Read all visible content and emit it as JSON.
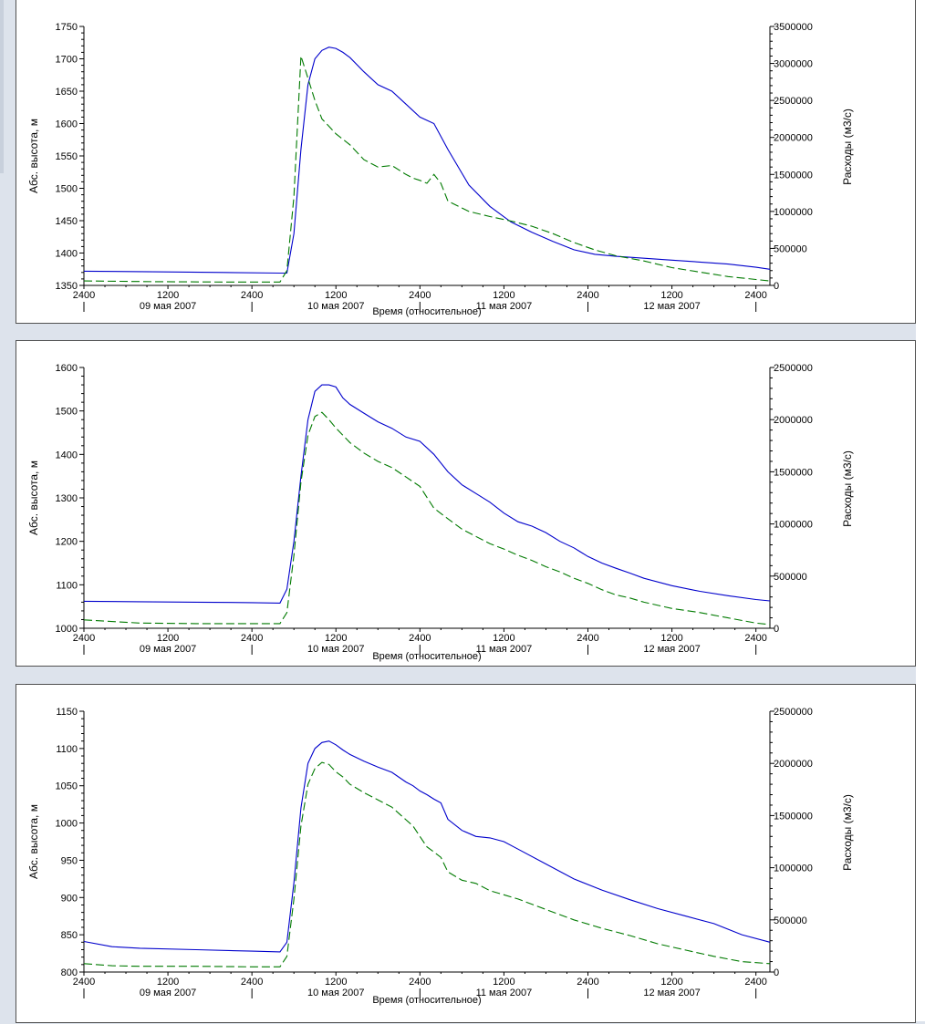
{
  "colors": {
    "elevation_line": "#0000cc",
    "discharge_line": "#007a00",
    "axis": "#000000",
    "panel_background": "#ffffff",
    "window_background": "#dde3ec"
  },
  "chart_data": [
    {
      "type": "line",
      "title": "",
      "xlabel": "Время (относительное)",
      "ylabel": "Абс. высота, м",
      "y2label": "Расходы (м3/с)",
      "x_tick_labels": [
        "2400",
        "1200",
        "2400",
        "1200",
        "2400",
        "1200",
        "2400",
        "1200",
        "2400"
      ],
      "date_labels": [
        "09 мая 2007",
        "10 мая 2007",
        "11 мая 2007",
        "12 мая 2007"
      ],
      "xlim": [
        0,
        98
      ],
      "ylim": [
        1350,
        1750
      ],
      "y_ticks": [
        1350,
        1400,
        1450,
        1500,
        1550,
        1600,
        1650,
        1700,
        1750
      ],
      "y2lim": [
        0,
        3500000
      ],
      "y2_ticks": [
        0,
        500000,
        1000000,
        1500000,
        2000000,
        2500000,
        3000000,
        3500000
      ],
      "grid": false,
      "series": [
        {
          "axis": "left",
          "line_style": "solid",
          "color": "#0000cc",
          "x": [
            0,
            10,
            20,
            28,
            29,
            30,
            31,
            32,
            33,
            34,
            35,
            36,
            37,
            38,
            40,
            42,
            44,
            46,
            48,
            50,
            52,
            55,
            58,
            61,
            64,
            67,
            70,
            73,
            76,
            80,
            84,
            88,
            92,
            96,
            98
          ],
          "y": [
            1372,
            1371,
            1370,
            1369,
            1369,
            1430,
            1560,
            1660,
            1700,
            1713,
            1718,
            1716,
            1710,
            1702,
            1680,
            1660,
            1650,
            1630,
            1610,
            1600,
            1560,
            1505,
            1472,
            1448,
            1432,
            1418,
            1405,
            1398,
            1395,
            1392,
            1389,
            1386,
            1383,
            1378,
            1375
          ]
        },
        {
          "axis": "right",
          "line_style": "dashed",
          "color": "#007a00",
          "x": [
            0,
            10,
            20,
            28,
            29,
            30,
            31,
            32,
            33,
            34,
            35,
            36,
            38,
            40,
            42,
            44,
            46,
            47,
            48,
            49,
            50,
            51,
            52,
            55,
            58,
            61,
            64,
            67,
            70,
            73,
            76,
            80,
            84,
            88,
            92,
            96,
            98
          ],
          "y": [
            60000,
            50000,
            45000,
            45000,
            200000,
            1200000,
            3100000,
            2800000,
            2500000,
            2250000,
            2150000,
            2050000,
            1900000,
            1700000,
            1600000,
            1620000,
            1500000,
            1450000,
            1420000,
            1380000,
            1500000,
            1380000,
            1140000,
            1000000,
            930000,
            870000,
            800000,
            700000,
            580000,
            480000,
            400000,
            330000,
            240000,
            180000,
            120000,
            80000,
            60000
          ]
        }
      ]
    },
    {
      "type": "line",
      "title": "",
      "xlabel": "Время (относительное)",
      "ylabel": "Абс. высота, м",
      "y2label": "Расходы (м3/с)",
      "x_tick_labels": [
        "2400",
        "1200",
        "2400",
        "1200",
        "2400",
        "1200",
        "2400",
        "1200",
        "2400"
      ],
      "date_labels": [
        "09 мая 2007",
        "10 мая 2007",
        "11 мая 2007",
        "12 мая 2007"
      ],
      "xlim": [
        0,
        98
      ],
      "ylim": [
        1000,
        1600
      ],
      "y_ticks": [
        1000,
        1100,
        1200,
        1300,
        1400,
        1500,
        1600
      ],
      "y2lim": [
        0,
        2500000
      ],
      "y2_ticks": [
        0,
        500000,
        1000000,
        1500000,
        2000000,
        2500000
      ],
      "grid": false,
      "series": [
        {
          "axis": "left",
          "line_style": "solid",
          "color": "#0000cc",
          "x": [
            0,
            8,
            16,
            24,
            28,
            29,
            30,
            31,
            32,
            33,
            34,
            35,
            36,
            37,
            38,
            40,
            42,
            44,
            46,
            48,
            50,
            52,
            54,
            56,
            58,
            60,
            62,
            64,
            66,
            68,
            70,
            72,
            74,
            76,
            78,
            80,
            84,
            88,
            92,
            96,
            98
          ],
          "y": [
            1062,
            1061,
            1060,
            1059,
            1058,
            1090,
            1200,
            1350,
            1480,
            1545,
            1560,
            1560,
            1555,
            1530,
            1515,
            1495,
            1475,
            1460,
            1440,
            1430,
            1400,
            1360,
            1330,
            1310,
            1290,
            1265,
            1245,
            1235,
            1220,
            1200,
            1185,
            1165,
            1150,
            1138,
            1127,
            1115,
            1098,
            1085,
            1075,
            1066,
            1063
          ]
        },
        {
          "axis": "right",
          "line_style": "dashed",
          "color": "#007a00",
          "x": [
            0,
            8,
            16,
            24,
            28,
            29,
            30,
            31,
            32,
            33,
            34,
            35,
            36,
            37,
            38,
            40,
            42,
            44,
            46,
            48,
            50,
            52,
            54,
            56,
            58,
            60,
            62,
            64,
            66,
            68,
            70,
            72,
            74,
            76,
            78,
            80,
            84,
            88,
            92,
            96,
            98
          ],
          "y": [
            80000,
            50000,
            45000,
            45000,
            45000,
            150000,
            700000,
            1400000,
            1850000,
            2030000,
            2070000,
            2000000,
            1920000,
            1850000,
            1780000,
            1680000,
            1600000,
            1540000,
            1450000,
            1360000,
            1150000,
            1050000,
            950000,
            880000,
            810000,
            760000,
            700000,
            650000,
            590000,
            540000,
            480000,
            430000,
            370000,
            320000,
            290000,
            250000,
            190000,
            150000,
            100000,
            50000,
            35000
          ]
        }
      ]
    },
    {
      "type": "line",
      "title": "",
      "xlabel": "Время (относительное)",
      "ylabel": "Абс. высота, м",
      "y2label": "Расходы (м3/с)",
      "x_tick_labels": [
        "2400",
        "1200",
        "2400",
        "1200",
        "2400",
        "1200",
        "2400",
        "1200",
        "2400"
      ],
      "date_labels": [
        "09 мая 2007",
        "10 мая 2007",
        "11 мая 2007",
        "12 мая 2007"
      ],
      "xlim": [
        0,
        98
      ],
      "ylim": [
        800,
        1150
      ],
      "y_ticks": [
        800,
        850,
        900,
        950,
        1000,
        1050,
        1100,
        1150
      ],
      "y2lim": [
        0,
        2500000
      ],
      "y2_ticks": [
        0,
        500000,
        1000000,
        1500000,
        2000000,
        2500000
      ],
      "grid": false,
      "series": [
        {
          "axis": "left",
          "line_style": "solid",
          "color": "#0000cc",
          "x": [
            0,
            4,
            8,
            16,
            24,
            28,
            29,
            30,
            31,
            32,
            33,
            34,
            35,
            36,
            37,
            38,
            40,
            42,
            44,
            46,
            47,
            48,
            49,
            50,
            51,
            52,
            54,
            56,
            58,
            60,
            62,
            66,
            70,
            74,
            78,
            82,
            86,
            90,
            94,
            98
          ],
          "y": [
            841,
            834,
            832,
            830,
            828,
            827,
            840,
            920,
            1020,
            1080,
            1100,
            1108,
            1110,
            1105,
            1098,
            1092,
            1083,
            1075,
            1068,
            1055,
            1050,
            1043,
            1038,
            1032,
            1027,
            1005,
            990,
            982,
            980,
            975,
            965,
            945,
            925,
            910,
            897,
            885,
            875,
            865,
            850,
            840
          ]
        },
        {
          "axis": "right",
          "line_style": "dashed",
          "color": "#007a00",
          "x": [
            0,
            4,
            8,
            16,
            24,
            28,
            29,
            30,
            31,
            32,
            33,
            34,
            35,
            36,
            37,
            38,
            40,
            42,
            44,
            46,
            47,
            48,
            49,
            50,
            51,
            52,
            54,
            56,
            58,
            60,
            62,
            66,
            70,
            74,
            78,
            82,
            86,
            90,
            94,
            98
          ],
          "y": [
            80000,
            60000,
            55000,
            55000,
            50000,
            50000,
            150000,
            700000,
            1400000,
            1800000,
            1950000,
            2010000,
            1990000,
            1920000,
            1870000,
            1800000,
            1720000,
            1650000,
            1580000,
            1460000,
            1400000,
            1300000,
            1200000,
            1150000,
            1100000,
            960000,
            880000,
            850000,
            780000,
            740000,
            700000,
            600000,
            500000,
            420000,
            350000,
            270000,
            210000,
            150000,
            100000,
            80000
          ]
        }
      ]
    }
  ]
}
